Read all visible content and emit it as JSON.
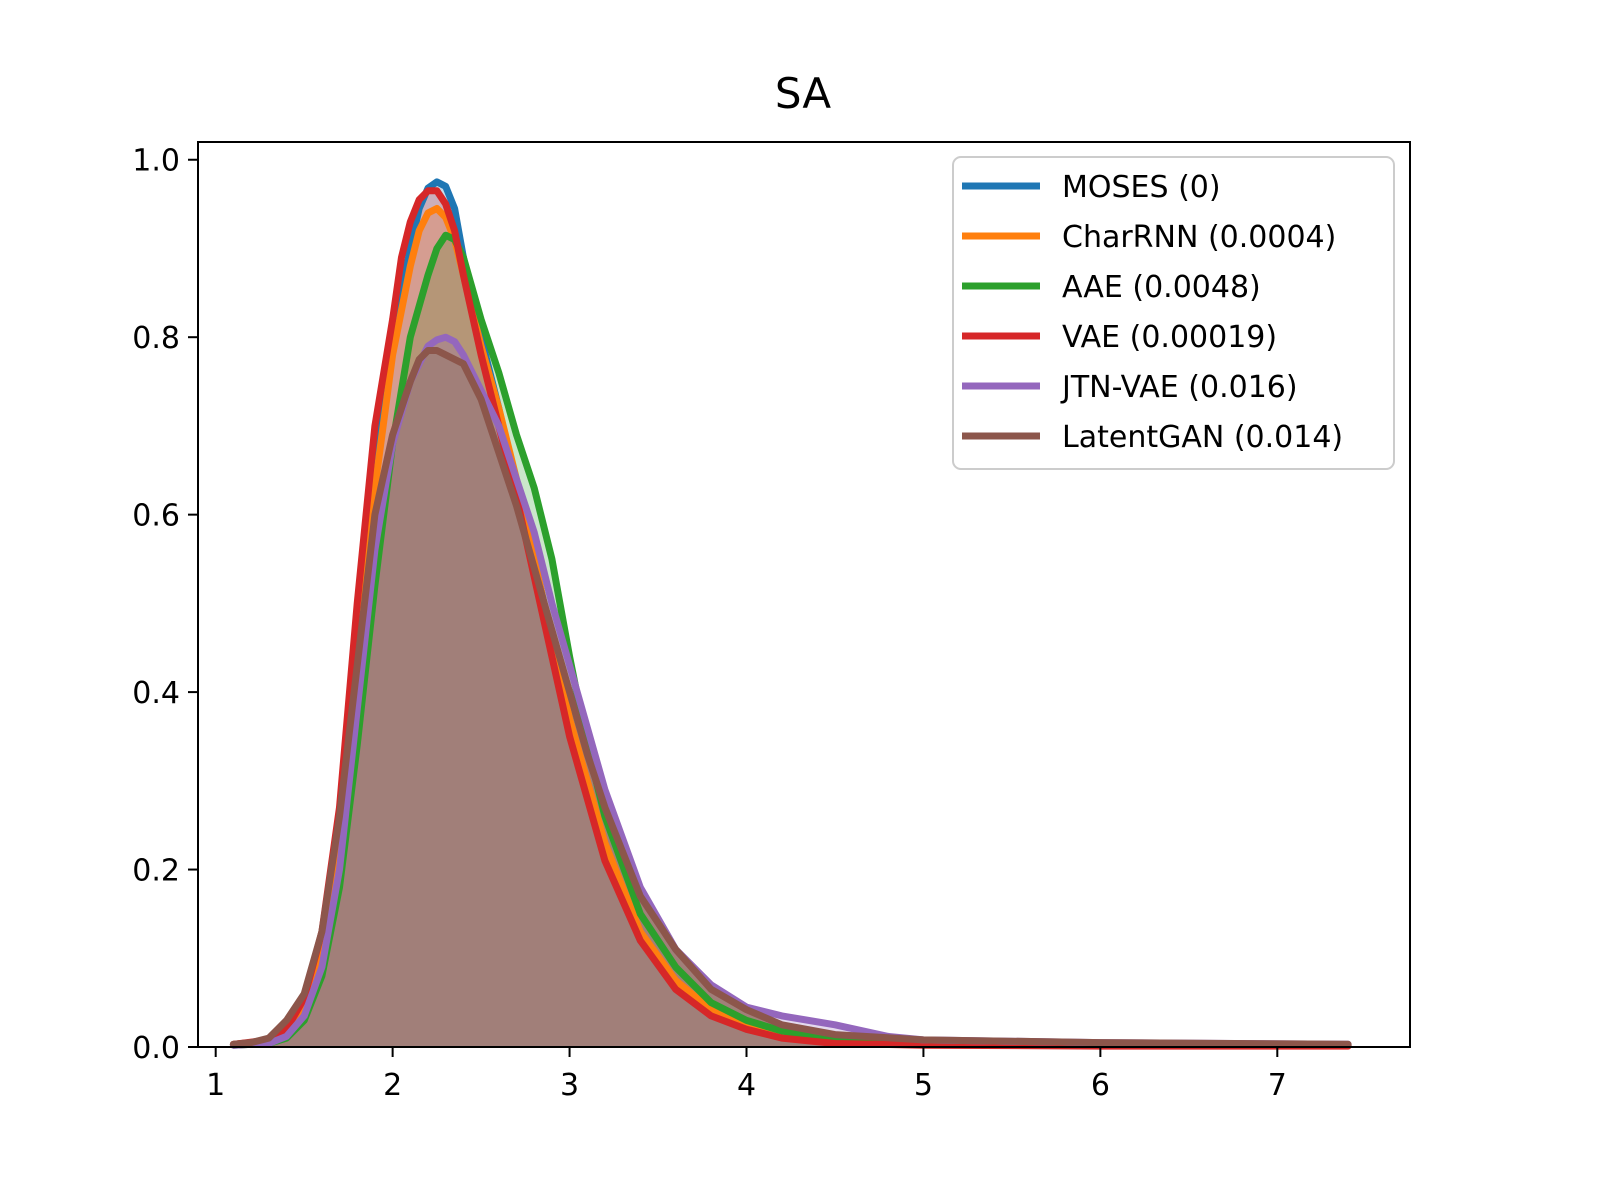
{
  "chart_data": {
    "type": "area",
    "title": "SA",
    "xlabel": "",
    "ylabel": "",
    "xlim": [
      0.9,
      7.75
    ],
    "ylim": [
      0,
      1.02
    ],
    "xticks": [
      1,
      2,
      3,
      4,
      5,
      6,
      7
    ],
    "xtick_labels": [
      "1",
      "2",
      "3",
      "4",
      "5",
      "6",
      "7"
    ],
    "yticks": [
      0.0,
      0.2,
      0.4,
      0.6,
      0.8,
      1.0
    ],
    "ytick_labels": [
      "0.0",
      "0.2",
      "0.4",
      "0.6",
      "0.8",
      "1.0"
    ],
    "grid": false,
    "legend_position": "top-right",
    "series": [
      {
        "name": "MOSES (0)",
        "color": "#1f77b4",
        "points": [
          [
            1.1,
            0.003
          ],
          [
            1.3,
            0.007
          ],
          [
            1.4,
            0.02
          ],
          [
            1.5,
            0.05
          ],
          [
            1.6,
            0.12
          ],
          [
            1.7,
            0.25
          ],
          [
            1.8,
            0.46
          ],
          [
            1.9,
            0.65
          ],
          [
            2.0,
            0.8
          ],
          [
            2.1,
            0.9
          ],
          [
            2.15,
            0.945
          ],
          [
            2.2,
            0.968
          ],
          [
            2.25,
            0.975
          ],
          [
            2.3,
            0.97
          ],
          [
            2.35,
            0.945
          ],
          [
            2.4,
            0.89
          ],
          [
            2.5,
            0.8
          ],
          [
            2.6,
            0.72
          ],
          [
            2.7,
            0.63
          ],
          [
            2.8,
            0.55
          ],
          [
            2.9,
            0.46
          ],
          [
            3.0,
            0.37
          ],
          [
            3.2,
            0.22
          ],
          [
            3.4,
            0.12
          ],
          [
            3.6,
            0.07
          ],
          [
            3.8,
            0.04
          ],
          [
            4.0,
            0.02
          ],
          [
            4.2,
            0.012
          ],
          [
            4.5,
            0.007
          ],
          [
            5.0,
            0.004
          ],
          [
            6.0,
            0.003
          ],
          [
            7.4,
            0.002
          ]
        ]
      },
      {
        "name": "CharRNN (0.0004)",
        "color": "#ff7f0e",
        "points": [
          [
            1.1,
            0.003
          ],
          [
            1.3,
            0.007
          ],
          [
            1.4,
            0.018
          ],
          [
            1.5,
            0.045
          ],
          [
            1.6,
            0.11
          ],
          [
            1.7,
            0.24
          ],
          [
            1.8,
            0.44
          ],
          [
            1.9,
            0.63
          ],
          [
            2.0,
            0.78
          ],
          [
            2.1,
            0.88
          ],
          [
            2.15,
            0.92
          ],
          [
            2.2,
            0.94
          ],
          [
            2.25,
            0.945
          ],
          [
            2.3,
            0.935
          ],
          [
            2.35,
            0.91
          ],
          [
            2.4,
            0.87
          ],
          [
            2.5,
            0.79
          ],
          [
            2.6,
            0.72
          ],
          [
            2.7,
            0.64
          ],
          [
            2.8,
            0.55
          ],
          [
            2.9,
            0.46
          ],
          [
            3.0,
            0.37
          ],
          [
            3.2,
            0.23
          ],
          [
            3.4,
            0.13
          ],
          [
            3.6,
            0.075
          ],
          [
            3.8,
            0.042
          ],
          [
            4.0,
            0.024
          ],
          [
            4.2,
            0.014
          ],
          [
            4.5,
            0.008
          ],
          [
            5.0,
            0.004
          ],
          [
            6.0,
            0.003
          ],
          [
            7.4,
            0.002
          ]
        ]
      },
      {
        "name": "AAE (0.0048)",
        "color": "#2ca02c",
        "points": [
          [
            1.1,
            0.002
          ],
          [
            1.3,
            0.004
          ],
          [
            1.4,
            0.01
          ],
          [
            1.5,
            0.03
          ],
          [
            1.6,
            0.08
          ],
          [
            1.7,
            0.18
          ],
          [
            1.8,
            0.34
          ],
          [
            1.9,
            0.52
          ],
          [
            2.0,
            0.68
          ],
          [
            2.1,
            0.8
          ],
          [
            2.2,
            0.87
          ],
          [
            2.25,
            0.9
          ],
          [
            2.3,
            0.915
          ],
          [
            2.35,
            0.91
          ],
          [
            2.4,
            0.89
          ],
          [
            2.5,
            0.82
          ],
          [
            2.6,
            0.76
          ],
          [
            2.7,
            0.69
          ],
          [
            2.8,
            0.63
          ],
          [
            2.9,
            0.55
          ],
          [
            3.0,
            0.44
          ],
          [
            3.1,
            0.34
          ],
          [
            3.2,
            0.26
          ],
          [
            3.4,
            0.15
          ],
          [
            3.6,
            0.09
          ],
          [
            3.8,
            0.05
          ],
          [
            4.0,
            0.03
          ],
          [
            4.2,
            0.018
          ],
          [
            4.5,
            0.009
          ],
          [
            5.0,
            0.004
          ],
          [
            6.0,
            0.003
          ],
          [
            7.4,
            0.002
          ]
        ]
      },
      {
        "name": "VAE (0.00019)",
        "color": "#d62728",
        "points": [
          [
            1.1,
            0.003
          ],
          [
            1.3,
            0.008
          ],
          [
            1.4,
            0.02
          ],
          [
            1.5,
            0.055
          ],
          [
            1.6,
            0.13
          ],
          [
            1.7,
            0.27
          ],
          [
            1.8,
            0.5
          ],
          [
            1.9,
            0.7
          ],
          [
            2.0,
            0.82
          ],
          [
            2.05,
            0.89
          ],
          [
            2.1,
            0.93
          ],
          [
            2.15,
            0.955
          ],
          [
            2.2,
            0.965
          ],
          [
            2.25,
            0.965
          ],
          [
            2.3,
            0.95
          ],
          [
            2.35,
            0.92
          ],
          [
            2.4,
            0.87
          ],
          [
            2.5,
            0.78
          ],
          [
            2.6,
            0.7
          ],
          [
            2.7,
            0.62
          ],
          [
            2.8,
            0.53
          ],
          [
            2.9,
            0.44
          ],
          [
            3.0,
            0.35
          ],
          [
            3.2,
            0.21
          ],
          [
            3.4,
            0.12
          ],
          [
            3.6,
            0.065
          ],
          [
            3.8,
            0.035
          ],
          [
            4.0,
            0.02
          ],
          [
            4.2,
            0.01
          ],
          [
            4.5,
            0.004
          ],
          [
            5.0,
            0.002
          ],
          [
            6.0,
            0.001
          ],
          [
            7.4,
            0.001
          ]
        ]
      },
      {
        "name": "JTN-VAE (0.016)",
        "color": "#9467bd",
        "points": [
          [
            1.1,
            0.002
          ],
          [
            1.3,
            0.004
          ],
          [
            1.4,
            0.012
          ],
          [
            1.5,
            0.035
          ],
          [
            1.6,
            0.09
          ],
          [
            1.7,
            0.2
          ],
          [
            1.8,
            0.38
          ],
          [
            1.9,
            0.56
          ],
          [
            2.0,
            0.68
          ],
          [
            2.1,
            0.75
          ],
          [
            2.2,
            0.79
          ],
          [
            2.25,
            0.797
          ],
          [
            2.3,
            0.8
          ],
          [
            2.35,
            0.795
          ],
          [
            2.4,
            0.78
          ],
          [
            2.5,
            0.74
          ],
          [
            2.6,
            0.7
          ],
          [
            2.7,
            0.64
          ],
          [
            2.8,
            0.58
          ],
          [
            2.9,
            0.5
          ],
          [
            3.0,
            0.43
          ],
          [
            3.1,
            0.36
          ],
          [
            3.2,
            0.29
          ],
          [
            3.4,
            0.18
          ],
          [
            3.6,
            0.11
          ],
          [
            3.8,
            0.07
          ],
          [
            4.0,
            0.045
          ],
          [
            4.2,
            0.035
          ],
          [
            4.5,
            0.025
          ],
          [
            4.8,
            0.012
          ],
          [
            5.0,
            0.008
          ],
          [
            6.0,
            0.005
          ],
          [
            7.4,
            0.003
          ]
        ]
      },
      {
        "name": "LatentGAN (0.014)",
        "color": "#8c564b",
        "fill": "#a17f79",
        "points": [
          [
            1.1,
            0.003
          ],
          [
            1.2,
            0.005
          ],
          [
            1.3,
            0.01
          ],
          [
            1.35,
            0.02
          ],
          [
            1.4,
            0.03
          ],
          [
            1.5,
            0.06
          ],
          [
            1.6,
            0.13
          ],
          [
            1.7,
            0.26
          ],
          [
            1.8,
            0.43
          ],
          [
            1.9,
            0.6
          ],
          [
            2.0,
            0.69
          ],
          [
            2.1,
            0.75
          ],
          [
            2.15,
            0.775
          ],
          [
            2.2,
            0.785
          ],
          [
            2.25,
            0.785
          ],
          [
            2.3,
            0.78
          ],
          [
            2.4,
            0.77
          ],
          [
            2.5,
            0.73
          ],
          [
            2.6,
            0.67
          ],
          [
            2.7,
            0.61
          ],
          [
            2.8,
            0.54
          ],
          [
            2.9,
            0.47
          ],
          [
            3.0,
            0.4
          ],
          [
            3.1,
            0.33
          ],
          [
            3.2,
            0.27
          ],
          [
            3.4,
            0.17
          ],
          [
            3.6,
            0.11
          ],
          [
            3.8,
            0.065
          ],
          [
            4.0,
            0.042
          ],
          [
            4.2,
            0.025
          ],
          [
            4.5,
            0.014
          ],
          [
            5.0,
            0.008
          ],
          [
            6.0,
            0.005
          ],
          [
            7.4,
            0.003
          ]
        ]
      }
    ]
  }
}
